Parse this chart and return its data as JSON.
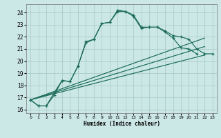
{
  "xlabel": "Humidex (Indice chaleur)",
  "background_color": "#cce8e6",
  "grid_color": "#aaccca",
  "line_color": "#1a6b5a",
  "xlim": [
    -0.5,
    23.5
  ],
  "ylim": [
    15.7,
    24.7
  ],
  "yticks": [
    16,
    17,
    18,
    19,
    20,
    21,
    22,
    23,
    24
  ],
  "xticks": [
    0,
    1,
    2,
    3,
    4,
    5,
    6,
    7,
    8,
    9,
    10,
    11,
    12,
    13,
    14,
    15,
    16,
    17,
    18,
    19,
    20,
    21,
    22,
    23
  ],
  "curve1_x": [
    0,
    1,
    2,
    3,
    4,
    5,
    6,
    7,
    8,
    9,
    10,
    11,
    12,
    13,
    14,
    15,
    16,
    17,
    18,
    19,
    20,
    21
  ],
  "curve1_y": [
    16.8,
    16.3,
    16.3,
    17.2,
    18.4,
    18.3,
    19.6,
    21.6,
    21.8,
    23.1,
    23.2,
    24.1,
    24.1,
    23.7,
    22.7,
    22.8,
    22.8,
    22.4,
    21.9,
    21.1,
    21.0,
    20.6
  ],
  "curve2_x": [
    0,
    1,
    2,
    3,
    4,
    5,
    6,
    7,
    8,
    9,
    10,
    11,
    12,
    13,
    14,
    15,
    16,
    17,
    18,
    19,
    20,
    21,
    22,
    23
  ],
  "curve2_y": [
    16.8,
    16.3,
    16.3,
    17.4,
    18.4,
    18.3,
    19.6,
    21.5,
    21.8,
    23.1,
    23.2,
    24.2,
    24.1,
    23.8,
    22.8,
    22.8,
    22.8,
    22.5,
    22.1,
    22.0,
    21.8,
    21.0,
    20.6,
    20.6
  ],
  "diag_lines": [
    {
      "x": [
        0,
        22
      ],
      "y": [
        16.8,
        21.9
      ]
    },
    {
      "x": [
        0,
        22
      ],
      "y": [
        16.8,
        21.2
      ]
    },
    {
      "x": [
        0,
        22
      ],
      "y": [
        16.8,
        20.5
      ]
    }
  ]
}
